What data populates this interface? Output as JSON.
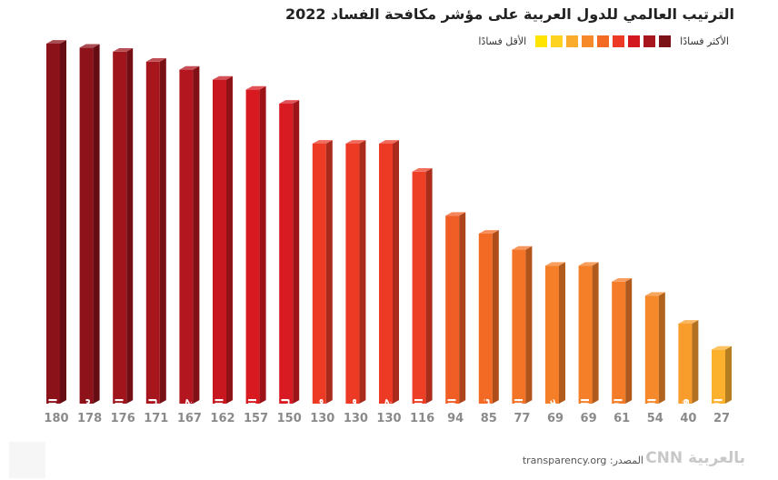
{
  "title": "الترتيب العالمي للدول العربية على مؤشر مكافحة الفساد 2022",
  "legend": {
    "most_label": "الأكثر فسادًا",
    "least_label": "الأقل فسادًا",
    "colors": [
      "#7a1218",
      "#a8161d",
      "#d4181f",
      "#ec3a25",
      "#f26a24",
      "#f6892a",
      "#fbab2b",
      "#fdd31f",
      "#ffe400"
    ]
  },
  "source": "المصدر: transparency.org",
  "logo": "بالعربية CNN",
  "chart_data": {
    "type": "bar",
    "title": "الترتيب العالمي للدول العربية على مؤشر مكافحة الفساد 2022",
    "categories": [
      "الصومال",
      "سوريا",
      "اليمن",
      "ليبيا",
      "جزر القمر",
      "السودان",
      "العراق",
      "لبنان",
      "موريتانيا",
      "مصر",
      "جيبوتي",
      "الجزائر",
      "المغرب",
      "تونس",
      "الكويت",
      "عمان",
      "البحرين",
      "الأردن",
      "السعودية",
      "قطر",
      "الإمارات"
    ],
    "values": [
      180,
      178,
      176,
      171,
      167,
      162,
      157,
      150,
      130,
      130,
      130,
      116,
      94,
      85,
      77,
      69,
      69,
      61,
      54,
      40,
      27
    ],
    "value_labels": [
      "180",
      "178",
      "176",
      "171",
      "167",
      "162",
      "157",
      "150",
      "130",
      "130",
      "130",
      "116",
      "94",
      "85",
      "77",
      "69",
      "69",
      "61",
      "54",
      "40",
      "27"
    ],
    "colors": [
      "#8c1219",
      "#8e121a",
      "#a0141c",
      "#a8161d",
      "#b3161e",
      "#c8171f",
      "#d8191f",
      "#d81a22",
      "#ec3a25",
      "#ec3a25",
      "#ec3a25",
      "#ec3f26",
      "#f05e26",
      "#f26a24",
      "#f47427",
      "#f57f28",
      "#f57f28",
      "#f47b28",
      "#f6892a",
      "#f89c2c",
      "#fbb02e"
    ],
    "xlabel": "",
    "ylabel": "",
    "ylim": [
      0,
      180
    ],
    "grid": false,
    "legend_position": "top-right"
  }
}
